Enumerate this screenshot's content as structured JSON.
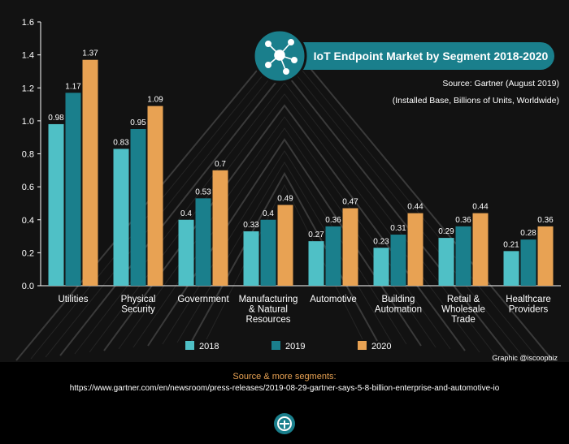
{
  "colors": {
    "2018": "#4fc0c6",
    "2019": "#1a7f8c",
    "2020": "#e8a253",
    "background": "#121212",
    "badge": "#1a7f8c"
  },
  "title": "IoT Endpoint Market by Segment 2018-2020",
  "source_note": "Source: Gartner (August 2019)",
  "units_note": "(Installed Base, Billions of Units, Worldwide)",
  "credit": "Graphic @iscoopbiz",
  "badge_icon": "network-hub-icon",
  "footer": {
    "heading": "Source & more segments:",
    "url": "https://www.gartner.com/en/newsroom/press-releases/2019-08-29-gartner-says-5-8-billion-enterprise-and-automotive-io",
    "logo_icon": "iscoop-logo-icon"
  },
  "chart_data": {
    "type": "bar",
    "categories": [
      [
        "Utilities"
      ],
      [
        "Physical",
        "Security"
      ],
      [
        "Government"
      ],
      [
        "Manufacturing",
        "& Natural",
        "Resources"
      ],
      [
        "Automotive"
      ],
      [
        "Building",
        "Automation"
      ],
      [
        "Retail &",
        "Wholesale",
        "Trade"
      ],
      [
        "Healthcare",
        "Providers"
      ]
    ],
    "series": [
      {
        "name": "2018",
        "values": [
          0.98,
          0.83,
          0.4,
          0.33,
          0.27,
          0.23,
          0.29,
          0.21
        ]
      },
      {
        "name": "2019",
        "values": [
          1.17,
          0.95,
          0.53,
          0.4,
          0.36,
          0.31,
          0.36,
          0.28
        ]
      },
      {
        "name": "2020",
        "values": [
          1.37,
          1.09,
          0.7,
          0.49,
          0.47,
          0.44,
          0.44,
          0.36
        ]
      }
    ],
    "y_ticks": [
      "0.0",
      "0.2",
      "0.4",
      "0.6",
      "0.8",
      "1.0",
      "1.2",
      "1.4",
      "1.6"
    ],
    "ylim": [
      0,
      1.6
    ],
    "grid": false,
    "legend_position": "bottom"
  }
}
